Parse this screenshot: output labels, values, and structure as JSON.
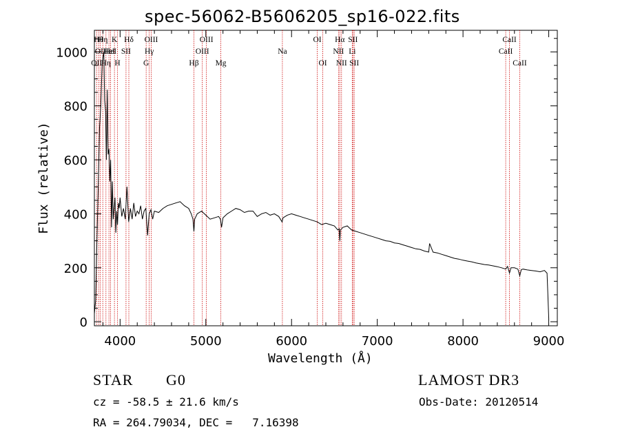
{
  "chart_data": {
    "type": "line",
    "title": "spec-56062-B5606205_sp16-022.fits",
    "xlabel": "Wavelength (Å)",
    "ylabel": "Flux (relative)",
    "xlim": [
      3700,
      9100
    ],
    "ylim": [
      -15,
      1080
    ],
    "x_ticks": [
      4000,
      5000,
      6000,
      7000,
      8000,
      9000
    ],
    "x_tick_labels": [
      "4000",
      "5000",
      "6000",
      "7000",
      "8000",
      "9000"
    ],
    "y_ticks": [
      0,
      200,
      400,
      600,
      800,
      1000
    ],
    "y_tick_labels": [
      "0",
      "200",
      "400",
      "600",
      "800",
      "1000"
    ],
    "line_color": "#000000",
    "marker_color": "#cc0000",
    "series": [
      {
        "name": "flux",
        "x": [
          3700,
          3715,
          3730,
          3745,
          3760,
          3775,
          3790,
          3800,
          3810,
          3820,
          3830,
          3840,
          3850,
          3860,
          3870,
          3880,
          3890,
          3900,
          3910,
          3920,
          3930,
          3940,
          3950,
          3960,
          3970,
          3980,
          3990,
          4000,
          4020,
          4040,
          4060,
          4080,
          4100,
          4120,
          4140,
          4160,
          4180,
          4200,
          4220,
          4240,
          4260,
          4280,
          4300,
          4320,
          4340,
          4360,
          4380,
          4400,
          4450,
          4500,
          4550,
          4600,
          4650,
          4700,
          4750,
          4800,
          4830,
          4850,
          4861,
          4870,
          4900,
          4950,
          5000,
          5050,
          5100,
          5150,
          5170,
          5183,
          5200,
          5250,
          5300,
          5350,
          5400,
          5450,
          5500,
          5550,
          5600,
          5650,
          5700,
          5750,
          5800,
          5850,
          5890,
          5900,
          5950,
          6000,
          6050,
          6100,
          6150,
          6200,
          6250,
          6300,
          6350,
          6400,
          6450,
          6500,
          6540,
          6555,
          6563,
          6570,
          6600,
          6650,
          6700,
          6750,
          6800,
          6850,
          6900,
          6950,
          7000,
          7050,
          7100,
          7150,
          7200,
          7250,
          7300,
          7350,
          7400,
          7450,
          7500,
          7550,
          7600,
          7610,
          7650,
          7700,
          7750,
          7800,
          7850,
          7900,
          7950,
          8000,
          8050,
          8100,
          8150,
          8200,
          8250,
          8300,
          8350,
          8400,
          8450,
          8498,
          8520,
          8542,
          8560,
          8600,
          8640,
          8662,
          8680,
          8700,
          8750,
          8800,
          8850,
          8900,
          8950,
          8980,
          8990,
          9000
        ],
        "y": [
          30,
          80,
          300,
          500,
          720,
          800,
          950,
          980,
          1000,
          820,
          780,
          600,
          860,
          620,
          640,
          520,
          600,
          350,
          520,
          380,
          420,
          460,
          330,
          410,
          360,
          440,
          420,
          460,
          390,
          420,
          380,
          500,
          370,
          420,
          380,
          440,
          390,
          410,
          400,
          430,
          380,
          410,
          420,
          320,
          400,
          415,
          380,
          410,
          405,
          420,
          430,
          435,
          440,
          445,
          430,
          420,
          400,
          380,
          335,
          380,
          400,
          410,
          395,
          380,
          385,
          390,
          380,
          350,
          385,
          400,
          410,
          420,
          415,
          405,
          410,
          410,
          390,
          400,
          405,
          395,
          400,
          390,
          370,
          385,
          395,
          400,
          395,
          390,
          385,
          380,
          375,
          370,
          360,
          365,
          360,
          355,
          340,
          345,
          300,
          340,
          350,
          355,
          340,
          335,
          330,
          325,
          320,
          315,
          310,
          305,
          300,
          298,
          292,
          290,
          285,
          280,
          275,
          270,
          268,
          262,
          258,
          290,
          258,
          255,
          250,
          245,
          240,
          235,
          232,
          228,
          225,
          222,
          218,
          215,
          212,
          210,
          207,
          204,
          200,
          195,
          205,
          180,
          200,
          200,
          195,
          170,
          193,
          195,
          192,
          190,
          188,
          185,
          190,
          180,
          100,
          10
        ]
      }
    ],
    "line_markers": [
      {
        "wavelength": 3726,
        "row": 3,
        "label": "OII"
      },
      {
        "wavelength": 3750,
        "row": 1,
        "label": "Hθ"
      },
      {
        "wavelength": 3770,
        "row": 2,
        "label": "OII"
      },
      {
        "wavelength": 3798,
        "row": 1,
        "label": "Hη"
      },
      {
        "wavelength": 3835,
        "row": 3,
        "label": "Hη"
      },
      {
        "wavelength": 3870,
        "row": 2,
        "label": "HeI"
      },
      {
        "wavelength": 3889,
        "row": 2,
        "label": "HeI"
      },
      {
        "wavelength": 3934,
        "row": 1,
        "label": "K"
      },
      {
        "wavelength": 3969,
        "row": 3,
        "label": "H"
      },
      {
        "wavelength": 4069,
        "row": 2,
        "label": "SII"
      },
      {
        "wavelength": 4102,
        "row": 1,
        "label": "Hδ"
      },
      {
        "wavelength": 4304,
        "row": 3,
        "label": "G"
      },
      {
        "wavelength": 4340,
        "row": 2,
        "label": "Hγ"
      },
      {
        "wavelength": 4363,
        "row": 1,
        "label": "OIII"
      },
      {
        "wavelength": 4861,
        "row": 3,
        "label": "Hβ"
      },
      {
        "wavelength": 4959,
        "row": 2,
        "label": "OIII"
      },
      {
        "wavelength": 5007,
        "row": 1,
        "label": "OIII"
      },
      {
        "wavelength": 5175,
        "row": 3,
        "label": "Mg"
      },
      {
        "wavelength": 5893,
        "row": 2,
        "label": "Na"
      },
      {
        "wavelength": 6300,
        "row": 1,
        "label": "OI"
      },
      {
        "wavelength": 6364,
        "row": 3,
        "label": "OI"
      },
      {
        "wavelength": 6548,
        "row": 2,
        "label": "NII"
      },
      {
        "wavelength": 6563,
        "row": 1,
        "label": "Hα"
      },
      {
        "wavelength": 6583,
        "row": 3,
        "label": "NII"
      },
      {
        "wavelength": 6708,
        "row": 2,
        "label": "Li"
      },
      {
        "wavelength": 6716,
        "row": 1,
        "label": "SII"
      },
      {
        "wavelength": 6731,
        "row": 3,
        "label": "SII"
      },
      {
        "wavelength": 8498,
        "row": 2,
        "label": "CaII"
      },
      {
        "wavelength": 8542,
        "row": 1,
        "label": "CaII"
      },
      {
        "wavelength": 8662,
        "row": 3,
        "label": "CaII"
      }
    ]
  },
  "info": {
    "object_class": "STAR",
    "subclass": "G0",
    "survey": "LAMOST DR3",
    "cz_line": "cz = -58.5 ± 21.6 km/s",
    "obs_date_line": "Obs-Date: 20120514",
    "coords_line": "RA = 264.79034, DEC =   7.16398"
  }
}
